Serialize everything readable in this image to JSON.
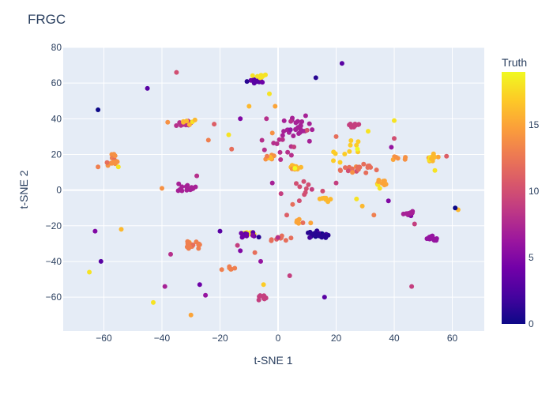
{
  "chart_data": {
    "type": "scatter",
    "title": "FRGC",
    "xlabel": "t-SNE 1",
    "ylabel": "t-SNE 2",
    "xlim": [
      -74,
      71
    ],
    "ylim": [
      -79,
      80
    ],
    "x_ticks": [
      -60,
      -40,
      -20,
      0,
      20,
      40,
      60
    ],
    "x_tick_labels": [
      "−60",
      "−40",
      "−20",
      "0",
      "20",
      "40",
      "60"
    ],
    "y_ticks": [
      -60,
      -40,
      -20,
      0,
      20,
      40,
      60,
      80
    ],
    "y_tick_labels": [
      "−60",
      "−40",
      "−20",
      "0",
      "20",
      "40",
      "60",
      "80"
    ],
    "grid": true,
    "background": "#e5ecf6",
    "colorbar": {
      "title": "Truth",
      "min": 0,
      "max": 19,
      "ticks": [
        0,
        5,
        10,
        15
      ],
      "colorscale": [
        "#0d0887",
        "#46039f",
        "#7201a8",
        "#9c179e",
        "#bd3786",
        "#d8576b",
        "#ed7953",
        "#fb9f3a",
        "#fdca26",
        "#f0f921"
      ]
    },
    "clusters": [
      {
        "x": -8,
        "y": 61,
        "value": 3,
        "n": 18,
        "sx": 2.2,
        "sy": 1.2
      },
      {
        "x": -6,
        "y": 64,
        "value": 18,
        "n": 8,
        "sx": 1.8,
        "sy": 1.0
      },
      {
        "x": -32,
        "y": 37,
        "value": 8,
        "n": 14,
        "sx": 2.2,
        "sy": 1.5
      },
      {
        "x": -31,
        "y": 38,
        "value": 16,
        "n": 6,
        "sx": 1.8,
        "sy": 1.0
      },
      {
        "x": -57,
        "y": 17,
        "value": 14,
        "n": 14,
        "sx": 2.5,
        "sy": 2.5
      },
      {
        "x": -31,
        "y": 1,
        "value": 7,
        "n": 14,
        "sx": 2.5,
        "sy": 2.0
      },
      {
        "x": -30,
        "y": -31,
        "value": 13,
        "n": 20,
        "sx": 2.2,
        "sy": 1.6
      },
      {
        "x": -10,
        "y": -24,
        "value": 18,
        "n": 10,
        "sx": 1.6,
        "sy": 1.0
      },
      {
        "x": -10,
        "y": -25,
        "value": 4,
        "n": 10,
        "sx": 2.2,
        "sy": 1.2
      },
      {
        "x": 14,
        "y": -25,
        "value": 1,
        "n": 30,
        "sx": 2.6,
        "sy": 1.3
      },
      {
        "x": -5,
        "y": -60,
        "value": 9,
        "n": 12,
        "sx": 1.5,
        "sy": 1.0
      },
      {
        "x": 6,
        "y": 13,
        "value": 16,
        "n": 14,
        "sx": 1.4,
        "sy": 1.2
      },
      {
        "x": 6,
        "y": 35,
        "value": 7,
        "n": 30,
        "sx": 4.5,
        "sy": 5.0
      },
      {
        "x": 26,
        "y": 37,
        "value": 9,
        "n": 12,
        "sx": 1.8,
        "sy": 1.2
      },
      {
        "x": 36,
        "y": 4,
        "value": 15,
        "n": 14,
        "sx": 1.8,
        "sy": 1.2
      },
      {
        "x": 27,
        "y": 12,
        "value": 12,
        "n": 24,
        "sx": 4.5,
        "sy": 2.0
      },
      {
        "x": 53,
        "y": 18,
        "value": 16,
        "n": 14,
        "sx": 1.8,
        "sy": 1.6
      },
      {
        "x": 45,
        "y": -13,
        "value": 7,
        "n": 10,
        "sx": 1.5,
        "sy": 1.0
      },
      {
        "x": 53,
        "y": -27,
        "value": 6,
        "n": 10,
        "sx": 1.5,
        "sy": 1.0
      },
      {
        "x": 16,
        "y": -5,
        "value": 16,
        "n": 8,
        "sx": 1.2,
        "sy": 1.0
      },
      {
        "x": 0,
        "y": -27,
        "value": 12,
        "n": 10,
        "sx": 4.0,
        "sy": 1.5
      },
      {
        "x": -3,
        "y": 18,
        "value": 14,
        "n": 8,
        "sx": 1.6,
        "sy": 1.6
      },
      {
        "x": 0,
        "y": 22,
        "value": 8,
        "n": 12,
        "sx": 4.5,
        "sy": 6.0
      },
      {
        "x": 23,
        "y": 22,
        "value": 17,
        "n": 12,
        "sx": 4.5,
        "sy": 5.0
      },
      {
        "x": -17,
        "y": -44,
        "value": 13,
        "n": 6,
        "sx": 2.5,
        "sy": 1.0
      },
      {
        "x": 10,
        "y": -2,
        "value": 10,
        "n": 10,
        "sx": 4.0,
        "sy": 4.0
      },
      {
        "x": 42,
        "y": 18,
        "value": 14,
        "n": 6,
        "sx": 3.0,
        "sy": 2.0
      },
      {
        "x": 8,
        "y": -18,
        "value": 15,
        "n": 6,
        "sx": 2.0,
        "sy": 1.0
      }
    ],
    "points": [
      [
        -62,
        45,
        0
      ],
      [
        -45,
        57,
        3
      ],
      [
        -35,
        66,
        10
      ],
      [
        22,
        71,
        3
      ],
      [
        13,
        63,
        1
      ],
      [
        -65,
        -46,
        18
      ],
      [
        -63,
        -23,
        5
      ],
      [
        -61,
        -40,
        3
      ],
      [
        -54,
        -22,
        16
      ],
      [
        -43,
        -63,
        18
      ],
      [
        -39,
        -54,
        7
      ],
      [
        -30,
        -70,
        15
      ],
      [
        -27,
        -53,
        4
      ],
      [
        -25,
        -59,
        6
      ],
      [
        -40,
        1,
        14
      ],
      [
        -37,
        -36,
        8
      ],
      [
        -24,
        28,
        13
      ],
      [
        -22,
        37,
        11
      ],
      [
        -17,
        31,
        18
      ],
      [
        -16,
        23,
        12
      ],
      [
        -13,
        40,
        5
      ],
      [
        -10,
        47,
        16
      ],
      [
        40,
        39,
        18
      ],
      [
        39,
        24,
        6
      ],
      [
        40,
        29,
        10
      ],
      [
        58,
        19,
        11
      ],
      [
        54,
        11,
        18
      ],
      [
        62,
        -11,
        16
      ],
      [
        61,
        -10,
        0
      ],
      [
        47,
        -19,
        9
      ],
      [
        46,
        -54,
        9
      ],
      [
        16,
        -60,
        3
      ],
      [
        4,
        -48,
        9
      ],
      [
        -20,
        -23,
        3
      ],
      [
        -13,
        -34,
        5
      ],
      [
        -14,
        -31,
        9
      ],
      [
        -5,
        -53,
        17
      ],
      [
        3,
        -14,
        11
      ],
      [
        29,
        -9,
        16
      ],
      [
        33,
        -14,
        13
      ],
      [
        38,
        -6,
        5
      ],
      [
        35,
        1,
        18
      ],
      [
        31,
        33,
        18
      ],
      [
        20,
        30,
        12
      ],
      [
        -3,
        54,
        18
      ],
      [
        -1,
        47,
        15
      ],
      [
        -4,
        40,
        8
      ],
      [
        -2,
        32,
        14
      ],
      [
        1,
        -2,
        9
      ],
      [
        5,
        -8,
        12
      ],
      [
        20,
        4,
        9
      ],
      [
        27,
        -5,
        18
      ],
      [
        -6,
        -40,
        6
      ],
      [
        -8,
        -35,
        12
      ],
      [
        -2,
        4,
        7
      ],
      [
        -55,
        13,
        18
      ],
      [
        -62,
        13,
        13
      ],
      [
        -38,
        38,
        14
      ],
      [
        -28,
        8,
        8
      ]
    ]
  }
}
